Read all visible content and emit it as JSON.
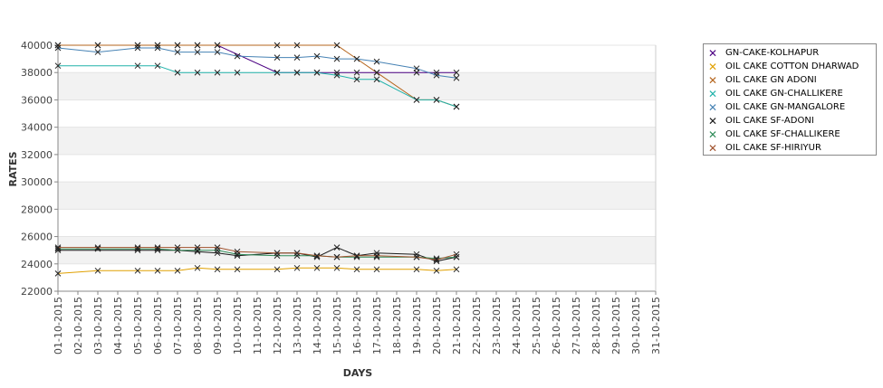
{
  "chart_data": {
    "type": "line",
    "xlabel": "DAYS",
    "ylabel": "RATES",
    "ylim": [
      22000,
      40000
    ],
    "yticks": [
      22000,
      24000,
      26000,
      28000,
      30000,
      32000,
      34000,
      36000,
      38000,
      40000
    ],
    "grid": "alternating horizontal bands",
    "legend_position": "right",
    "categories": [
      "01-10-2015",
      "02-10-2015",
      "03-10-2015",
      "04-10-2015",
      "05-10-2015",
      "06-10-2015",
      "07-10-2015",
      "08-10-2015",
      "09-10-2015",
      "10-10-2015",
      "11-10-2015",
      "12-10-2015",
      "13-10-2015",
      "14-10-2015",
      "15-10-2015",
      "16-10-2015",
      "17-10-2015",
      "18-10-2015",
      "19-10-2015",
      "20-10-2015",
      "21-10-2015",
      "22-10-2015",
      "23-10-2015",
      "24-10-2015",
      "25-10-2015",
      "26-10-2015",
      "27-10-2015",
      "28-10-2015",
      "29-10-2015",
      "30-10-2015",
      "31-10-2015"
    ],
    "series": [
      {
        "name": "GN-CAKE-KOLHAPUR",
        "color": "#4b0082",
        "x": [
          "01-10-2015",
          "03-10-2015",
          "05-10-2015",
          "06-10-2015",
          "07-10-2015",
          "08-10-2015",
          "09-10-2015",
          "12-10-2015",
          "13-10-2015",
          "14-10-2015",
          "15-10-2015",
          "16-10-2015",
          "17-10-2015",
          "19-10-2015",
          "20-10-2015",
          "21-10-2015"
        ],
        "values": [
          40000,
          40000,
          40000,
          40000,
          40000,
          40000,
          40000,
          38000,
          38000,
          38000,
          38000,
          38000,
          38000,
          38000,
          38000,
          38000
        ]
      },
      {
        "name": "OIL CAKE COTTON DHARWAD",
        "color": "#e0a000",
        "x": [
          "01-10-2015",
          "03-10-2015",
          "05-10-2015",
          "06-10-2015",
          "07-10-2015",
          "08-10-2015",
          "09-10-2015",
          "10-10-2015",
          "12-10-2015",
          "13-10-2015",
          "14-10-2015",
          "15-10-2015",
          "16-10-2015",
          "17-10-2015",
          "19-10-2015",
          "20-10-2015",
          "21-10-2015"
        ],
        "values": [
          23300,
          23500,
          23500,
          23500,
          23500,
          23700,
          23600,
          23600,
          23600,
          23700,
          23700,
          23700,
          23600,
          23600,
          23600,
          23500,
          23600
        ]
      },
      {
        "name": "OIL CAKE GN ADONI",
        "color": "#b5651d",
        "x": [
          "01-10-2015",
          "03-10-2015",
          "05-10-2015",
          "06-10-2015",
          "07-10-2015",
          "08-10-2015",
          "09-10-2015",
          "12-10-2015",
          "13-10-2015",
          "15-10-2015",
          "17-10-2015",
          "19-10-2015",
          "20-10-2015",
          "21-10-2015"
        ],
        "values": [
          40000,
          40000,
          40000,
          40000,
          40000,
          40000,
          40000,
          40000,
          40000,
          40000,
          38000,
          36000,
          36000,
          35500
        ]
      },
      {
        "name": "OIL CAKE GN-CHALLIKERE",
        "color": "#20b2aa",
        "x": [
          "01-10-2015",
          "05-10-2015",
          "06-10-2015",
          "07-10-2015",
          "08-10-2015",
          "09-10-2015",
          "10-10-2015",
          "12-10-2015",
          "13-10-2015",
          "14-10-2015",
          "15-10-2015",
          "16-10-2015",
          "17-10-2015",
          "19-10-2015",
          "20-10-2015",
          "21-10-2015"
        ],
        "values": [
          38500,
          38500,
          38500,
          38000,
          38000,
          38000,
          38000,
          38000,
          38000,
          38000,
          37800,
          37500,
          37500,
          36000,
          36000,
          35500
        ]
      },
      {
        "name": "OIL CAKE GN-MANGALORE",
        "color": "#4682b4",
        "x": [
          "01-10-2015",
          "03-10-2015",
          "05-10-2015",
          "06-10-2015",
          "07-10-2015",
          "08-10-2015",
          "09-10-2015",
          "10-10-2015",
          "12-10-2015",
          "13-10-2015",
          "14-10-2015",
          "15-10-2015",
          "16-10-2015",
          "17-10-2015",
          "19-10-2015",
          "20-10-2015",
          "21-10-2015"
        ],
        "values": [
          39800,
          39500,
          39800,
          39800,
          39500,
          39500,
          39500,
          39200,
          39100,
          39100,
          39200,
          39000,
          39000,
          38800,
          38300,
          37800,
          37600
        ]
      },
      {
        "name": "OIL CAKE SF-ADONI",
        "color": "#1a1a1a",
        "x": [
          "01-10-2015",
          "05-10-2015",
          "06-10-2015",
          "07-10-2015",
          "08-10-2015",
          "09-10-2015",
          "10-10-2015",
          "12-10-2015",
          "13-10-2015",
          "14-10-2015",
          "15-10-2015",
          "16-10-2015",
          "17-10-2015",
          "19-10-2015",
          "20-10-2015",
          "21-10-2015"
        ],
        "values": [
          25000,
          25000,
          25000,
          25000,
          24900,
          24800,
          24600,
          24800,
          24800,
          24500,
          25200,
          24600,
          24800,
          24700,
          24200,
          24500
        ]
      },
      {
        "name": "OIL CAKE SF-CHALLIKERE",
        "color": "#2e8b57",
        "x": [
          "01-10-2015",
          "03-10-2015",
          "05-10-2015",
          "06-10-2015",
          "07-10-2015",
          "08-10-2015",
          "09-10-2015",
          "10-10-2015",
          "12-10-2015",
          "13-10-2015",
          "14-10-2015",
          "15-10-2015",
          "16-10-2015",
          "17-10-2015",
          "19-10-2015",
          "20-10-2015",
          "21-10-2015"
        ],
        "values": [
          25100,
          25100,
          25100,
          25100,
          25000,
          25000,
          25000,
          24700,
          24600,
          24600,
          24600,
          24500,
          24500,
          24500,
          24500,
          24400,
          24500
        ]
      },
      {
        "name": "OIL CAKE SF-HIRIYUR",
        "color": "#a0522d",
        "x": [
          "01-10-2015",
          "03-10-2015",
          "05-10-2015",
          "06-10-2015",
          "07-10-2015",
          "08-10-2015",
          "09-10-2015",
          "10-10-2015",
          "12-10-2015",
          "13-10-2015",
          "14-10-2015",
          "15-10-2015",
          "16-10-2015",
          "17-10-2015",
          "19-10-2015",
          "20-10-2015",
          "21-10-2015"
        ],
        "values": [
          25200,
          25200,
          25200,
          25200,
          25200,
          25200,
          25200,
          24900,
          24800,
          24800,
          24600,
          24500,
          24600,
          24600,
          24500,
          24300,
          24700
        ]
      }
    ]
  }
}
